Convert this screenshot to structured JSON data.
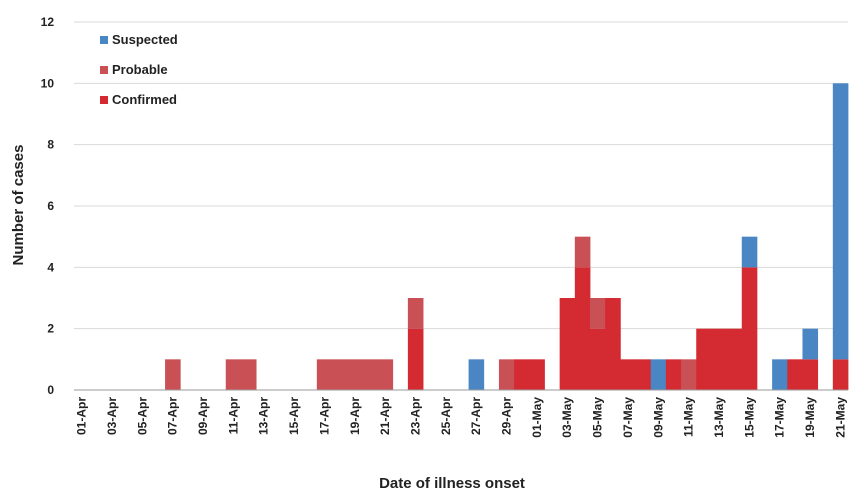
{
  "chart_data": {
    "type": "bar",
    "stacked": true,
    "xlabel": "Date of illness onset",
    "ylabel": "Number of cases",
    "ylim": [
      0,
      12
    ],
    "yticks": [
      0,
      2,
      4,
      6,
      8,
      10,
      12
    ],
    "grid": "horizontal",
    "legend_position": "top-left",
    "x_tick_labels": [
      "01-Apr",
      "03-Apr",
      "05-Apr",
      "07-Apr",
      "09-Apr",
      "11-Apr",
      "13-Apr",
      "15-Apr",
      "17-Apr",
      "19-Apr",
      "21-Apr",
      "23-Apr",
      "25-Apr",
      "27-Apr",
      "29-Apr",
      "01-May",
      "03-May",
      "05-May",
      "07-May",
      "09-May",
      "11-May",
      "13-May",
      "15-May",
      "17-May",
      "19-May",
      "21-May"
    ],
    "categories": [
      "01-Apr",
      "02-Apr",
      "03-Apr",
      "04-Apr",
      "05-Apr",
      "06-Apr",
      "07-Apr",
      "08-Apr",
      "09-Apr",
      "10-Apr",
      "11-Apr",
      "12-Apr",
      "13-Apr",
      "14-Apr",
      "15-Apr",
      "16-Apr",
      "17-Apr",
      "18-Apr",
      "19-Apr",
      "20-Apr",
      "21-Apr",
      "22-Apr",
      "23-Apr",
      "24-Apr",
      "25-Apr",
      "26-Apr",
      "27-Apr",
      "28-Apr",
      "29-Apr",
      "30-Apr",
      "01-May",
      "02-May",
      "03-May",
      "04-May",
      "05-May",
      "06-May",
      "07-May",
      "08-May",
      "09-May",
      "10-May",
      "11-May",
      "12-May",
      "13-May",
      "14-May",
      "15-May",
      "16-May",
      "17-May",
      "18-May",
      "19-May",
      "20-May",
      "21-May"
    ],
    "series": [
      {
        "name": "Confirmed",
        "color": "#d42a32",
        "values": [
          0,
          0,
          0,
          0,
          0,
          0,
          0,
          0,
          0,
          0,
          0,
          0,
          0,
          0,
          0,
          0,
          0,
          0,
          0,
          0,
          0,
          0,
          2,
          0,
          0,
          0,
          0,
          0,
          0,
          1,
          1,
          0,
          3,
          4,
          2,
          3,
          1,
          1,
          0,
          1,
          0,
          2,
          2,
          2,
          4,
          0,
          0,
          1,
          1,
          0,
          1
        ]
      },
      {
        "name": "Probable",
        "color": "#c95055",
        "values": [
          0,
          0,
          0,
          0,
          0,
          0,
          1,
          0,
          0,
          0,
          1,
          1,
          0,
          0,
          0,
          0,
          1,
          1,
          1,
          1,
          1,
          0,
          1,
          0,
          0,
          0,
          0,
          0,
          1,
          0,
          0,
          0,
          0,
          1,
          1,
          0,
          0,
          0,
          0,
          0,
          1,
          0,
          0,
          0,
          0,
          0,
          0,
          0,
          0,
          0,
          0
        ]
      },
      {
        "name": "Suspected",
        "color": "#4a86c4",
        "values": [
          0,
          0,
          0,
          0,
          0,
          0,
          0,
          0,
          0,
          0,
          0,
          0,
          0,
          0,
          0,
          0,
          0,
          0,
          0,
          0,
          0,
          0,
          0,
          0,
          0,
          0,
          1,
          0,
          0,
          0,
          0,
          0,
          0,
          0,
          0,
          0,
          0,
          0,
          1,
          0,
          0,
          0,
          0,
          0,
          1,
          0,
          1,
          0,
          1,
          0,
          9
        ]
      }
    ]
  },
  "legend": [
    {
      "label": "Suspected",
      "color": "#4a86c4"
    },
    {
      "label": "Probable",
      "color": "#c95055"
    },
    {
      "label": "Confirmed",
      "color": "#d42a32"
    }
  ]
}
